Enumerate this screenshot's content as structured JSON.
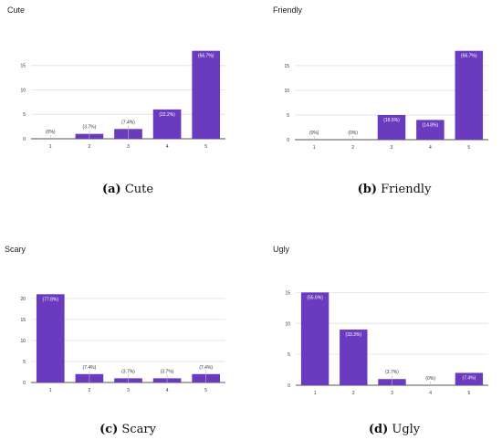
{
  "figure": {
    "panels": [
      {
        "title": "Cute",
        "caption_letter": "(a)",
        "caption_text": "Cute"
      },
      {
        "title": "Friendly",
        "caption_letter": "(b)",
        "caption_text": "Friendly"
      },
      {
        "title": "Scary",
        "caption_letter": "(c)",
        "caption_text": "Scary"
      },
      {
        "title": "Ugly",
        "caption_letter": "(d)",
        "caption_text": "Ugly"
      }
    ]
  },
  "colors": {
    "bar": "#6a3bbf",
    "grid": "#e6e6e6",
    "axis": "#555555",
    "label": "#333333"
  },
  "chart_data": [
    {
      "type": "bar",
      "title": "Cute",
      "categories": [
        "1",
        "2",
        "3",
        "4",
        "5"
      ],
      "values": [
        0,
        1,
        2,
        6,
        18
      ],
      "data_labels": [
        "(0%)",
        "(3.7%)",
        "(7.4%)",
        "(22.2%)",
        "(66.7%)"
      ],
      "yticks": [
        "0",
        "5",
        "10",
        "15"
      ],
      "ylim": [
        0,
        18.5
      ],
      "grid": true
    },
    {
      "type": "bar",
      "title": "Friendly",
      "categories": [
        "1",
        "2",
        "3",
        "4",
        "5"
      ],
      "values": [
        0,
        0,
        5,
        4,
        18
      ],
      "data_labels": [
        "(0%)",
        "(0%)",
        "(18.5%)",
        "(14.8%)",
        "(66.7%)"
      ],
      "yticks": [
        "0",
        "5",
        "10",
        "15"
      ],
      "ylim": [
        0,
        18.5
      ],
      "grid": true
    },
    {
      "type": "bar",
      "title": "Scary",
      "categories": [
        "1",
        "2",
        "3",
        "4",
        "5"
      ],
      "values": [
        21,
        2,
        1,
        1,
        2
      ],
      "data_labels": [
        "(77.8%)",
        "(7.4%)",
        "(3.7%)",
        "(3.7%)",
        "(7.4%)"
      ],
      "yticks": [
        "0",
        "5",
        "10",
        "15",
        "20"
      ],
      "ylim": [
        0,
        21.5
      ],
      "grid": true
    },
    {
      "type": "bar",
      "title": "Ugly",
      "categories": [
        "1",
        "2",
        "3",
        "4",
        "5"
      ],
      "values": [
        15,
        9,
        1,
        0,
        2
      ],
      "data_labels": [
        "(55.6%)",
        "(33.3%)",
        "(3.7%)",
        "(0%)",
        "(7.4%)"
      ],
      "yticks": [
        "0",
        "5",
        "10",
        "15"
      ],
      "ylim": [
        0,
        15.5
      ],
      "grid": true
    }
  ]
}
